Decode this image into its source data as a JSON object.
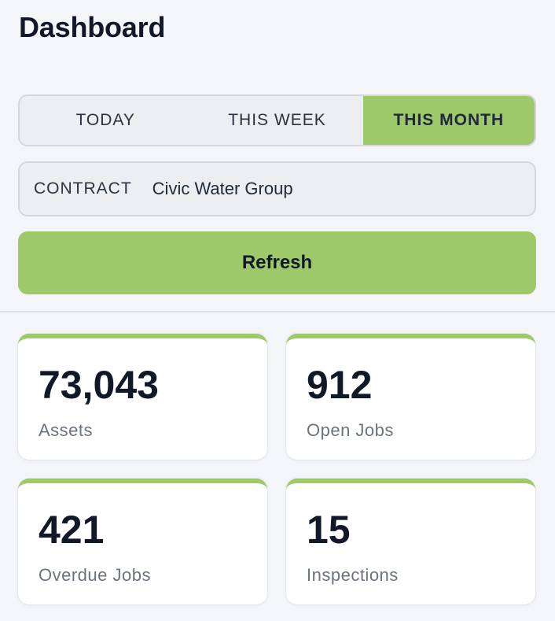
{
  "header": {
    "title": "Dashboard"
  },
  "period_tabs": [
    {
      "label": "TODAY",
      "active": false
    },
    {
      "label": "THIS WEEK",
      "active": false
    },
    {
      "label": "THIS MONTH",
      "active": true
    }
  ],
  "contract": {
    "label": "CONTRACT",
    "value": "Civic Water Group"
  },
  "refresh_label": "Refresh",
  "stats": [
    {
      "value": "73,043",
      "label": "Assets"
    },
    {
      "value": "912",
      "label": "Open Jobs"
    },
    {
      "value": "421",
      "label": "Overdue Jobs"
    },
    {
      "value": "15",
      "label": "Inspections"
    }
  ],
  "colors": {
    "accent": "#9ec96a",
    "background": "#f3f5f8",
    "card": "#ffffff",
    "muted_text": "#6b7280"
  }
}
